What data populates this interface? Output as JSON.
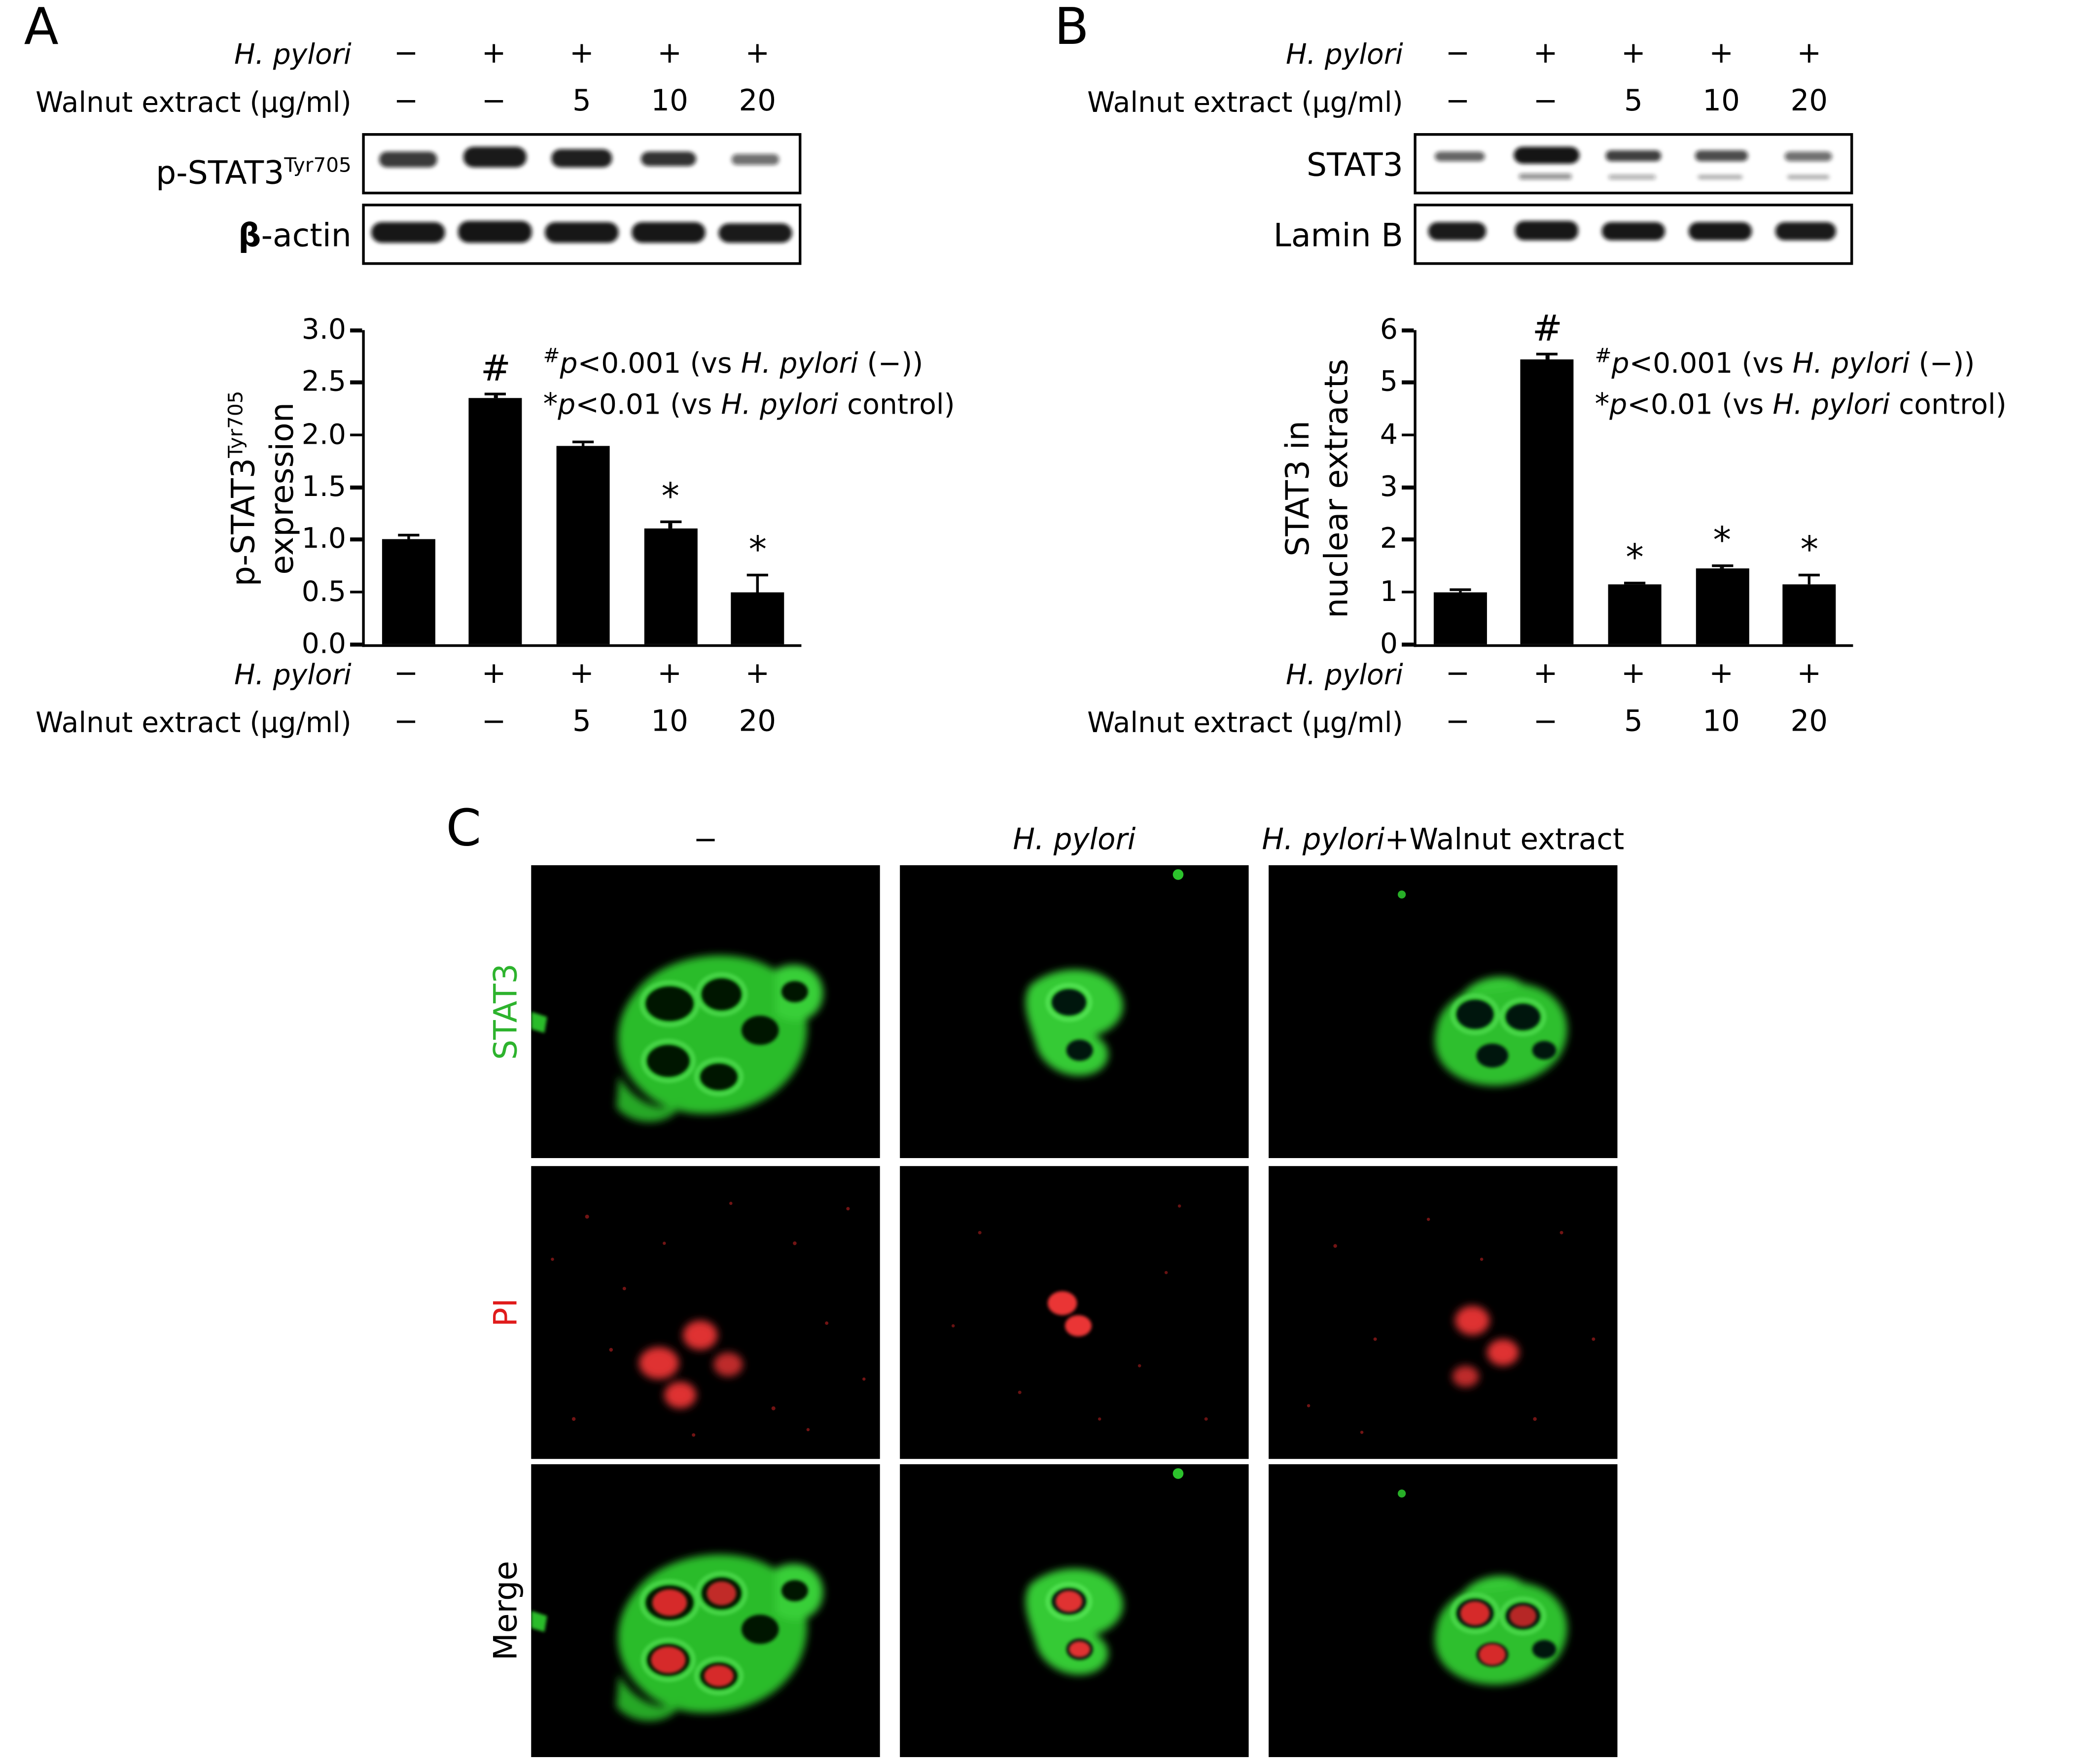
{
  "figure": {
    "background": "#ffffff",
    "text_color": "#000000"
  },
  "conditions": {
    "row1_label": "H. pylori",
    "row2_label": "Walnut extract (μg/ml)",
    "row1_values": [
      "−",
      "+",
      "+",
      "+",
      "+"
    ],
    "row2_values": [
      "−",
      "−",
      "5",
      "10",
      "20"
    ]
  },
  "panel_a": {
    "label": "A",
    "blot1_label": "p-STAT3",
    "blot1_sup": "Tyr705",
    "blot2_bold": "β",
    "blot2_rest": "-actin"
  },
  "panel_b": {
    "label": "B",
    "blot1_label": "STAT3",
    "blot2_label": "Lamin B"
  },
  "sig_notes": {
    "line1": {
      "marker": "#",
      "p": "p",
      "rel": "<0.001 (vs ",
      "species": "H. pylori",
      "tail": " (−))"
    },
    "line2": {
      "marker": "*",
      "p": "p",
      "rel": "<0.01 (vs ",
      "species": "H. pylori",
      "tail": " control)"
    }
  },
  "chart_data": [
    {
      "type": "bar",
      "panel": "A",
      "title": "",
      "xlabel": "",
      "ylabel": "p-STAT3Tyr705 expression",
      "ylabel_lines": [
        {
          "base": "p-STAT3",
          "sup": "Tyr705"
        },
        {
          "base": "expression"
        }
      ],
      "ylim": [
        0,
        3.0
      ],
      "yticks": [
        "0.0",
        "0.5",
        "1.0",
        "1.5",
        "2.0",
        "2.5",
        "3.0"
      ],
      "categories": [
        "H. pylori − / Walnut −",
        "H. pylori + / Walnut −",
        "H. pylori + / Walnut 5 μg/ml",
        "H. pylori + / Walnut 10 μg/ml",
        "H. pylori + / Walnut 20 μg/ml"
      ],
      "values": [
        1.0,
        2.35,
        1.9,
        1.1,
        0.5
      ],
      "errors": [
        0.05,
        0.05,
        0.04,
        0.08,
        0.17
      ],
      "sig": [
        "",
        "#",
        "",
        "*",
        "*"
      ],
      "annotations": [
        "#p<0.001 (vs H. pylori (−))",
        "*p<0.01 (vs H. pylori control)"
      ],
      "grid": false,
      "legend": "none",
      "bar_color": "#000000"
    },
    {
      "type": "bar",
      "panel": "B",
      "title": "",
      "xlabel": "",
      "ylabel": "STAT3 in nuclear extracts",
      "ylabel_lines": [
        {
          "base": "STAT3 in"
        },
        {
          "base": "nuclear extracts"
        }
      ],
      "ylim": [
        0,
        6
      ],
      "yticks": [
        "0",
        "1",
        "2",
        "3",
        "4",
        "5",
        "6"
      ],
      "categories": [
        "H. pylori − / Walnut −",
        "H. pylori + / Walnut −",
        "H. pylori + / Walnut 5 μg/ml",
        "H. pylori + / Walnut 10 μg/ml",
        "H. pylori + / Walnut 20 μg/ml"
      ],
      "values": [
        1.0,
        5.45,
        1.15,
        1.45,
        1.15
      ],
      "errors": [
        0.07,
        0.12,
        0.05,
        0.07,
        0.2
      ],
      "sig": [
        "",
        "#",
        "*",
        "*",
        "*"
      ],
      "annotations": [
        "#p<0.001 (vs H. pylori (−))",
        "*p<0.01 (vs H. pylori control)"
      ],
      "grid": false,
      "legend": "none",
      "bar_color": "#000000"
    }
  ],
  "panel_c": {
    "label": "C",
    "column_headers": [
      {
        "italic": "",
        "roman": "−"
      },
      {
        "italic": "H. pylori",
        "roman": ""
      },
      {
        "italic": "H. pylori",
        "roman": "+Walnut extract"
      }
    ],
    "row_labels": [
      "STAT3",
      "PI",
      "Merge"
    ],
    "label_colors": {
      "stat3": "#2db32d",
      "pi": "#e01b1b",
      "merge": "#000000"
    }
  }
}
